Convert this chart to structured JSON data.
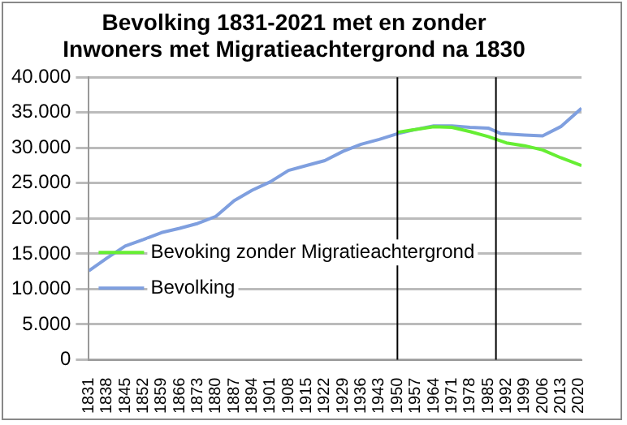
{
  "chart_data": {
    "type": "line",
    "title": "Bevolking 1831-2021 met en zonder\nInwoners met Migratieachtergrond na 1830",
    "xlim": [
      1831,
      2021
    ],
    "xticks": [
      1831,
      1838,
      1845,
      1852,
      1859,
      1866,
      1873,
      1880,
      1887,
      1894,
      1901,
      1908,
      1915,
      1922,
      1929,
      1936,
      1943,
      1950,
      1957,
      1964,
      1971,
      1978,
      1985,
      1992,
      1999,
      2006,
      2013,
      2020
    ],
    "ylim": [
      0,
      40000
    ],
    "yticks": [
      {
        "value": 0,
        "label": "0"
      },
      {
        "value": 5000,
        "label": "5.000"
      },
      {
        "value": 10000,
        "label": "10.000"
      },
      {
        "value": 15000,
        "label": "15.000"
      },
      {
        "value": 20000,
        "label": "20.000"
      },
      {
        "value": 25000,
        "label": "25.000"
      },
      {
        "value": 30000,
        "label": "30.000"
      },
      {
        "value": 35000,
        "label": "35.000"
      },
      {
        "value": 40000,
        "label": "40.000"
      }
    ],
    "grid": "y",
    "legend": "left",
    "marker": "none",
    "ref_lines": [
      {
        "axis": "x",
        "value": 1950,
        "color": "#000000"
      },
      {
        "axis": "x",
        "value": 1988,
        "color": "#000000"
      }
    ],
    "series": [
      {
        "name": "Bevoking zonder Migratieachtergrond",
        "color": "#66ee33",
        "x": [
          1950,
          1964,
          1971,
          1978,
          1985,
          1992,
          1999,
          2006,
          2013,
          2021
        ],
        "values": [
          32200,
          33000,
          32900,
          32300,
          31600,
          30700,
          30300,
          29700,
          28600,
          27500
        ]
      },
      {
        "name": "Bevolking",
        "color": "#7f9fdf",
        "x": [
          1831,
          1838,
          1845,
          1852,
          1859,
          1866,
          1873,
          1880,
          1887,
          1894,
          1901,
          1908,
          1915,
          1922,
          1929,
          1936,
          1943,
          1950,
          1957,
          1964,
          1971,
          1978,
          1985,
          1990,
          1999,
          2006,
          2013,
          2021
        ],
        "values": [
          12600,
          14400,
          16100,
          17000,
          18000,
          18600,
          19300,
          20300,
          22500,
          24000,
          25200,
          26800,
          27500,
          28200,
          29500,
          30500,
          31200,
          32000,
          32600,
          33100,
          33100,
          32900,
          32800,
          32000,
          31800,
          31700,
          33000,
          35600
        ]
      }
    ]
  }
}
